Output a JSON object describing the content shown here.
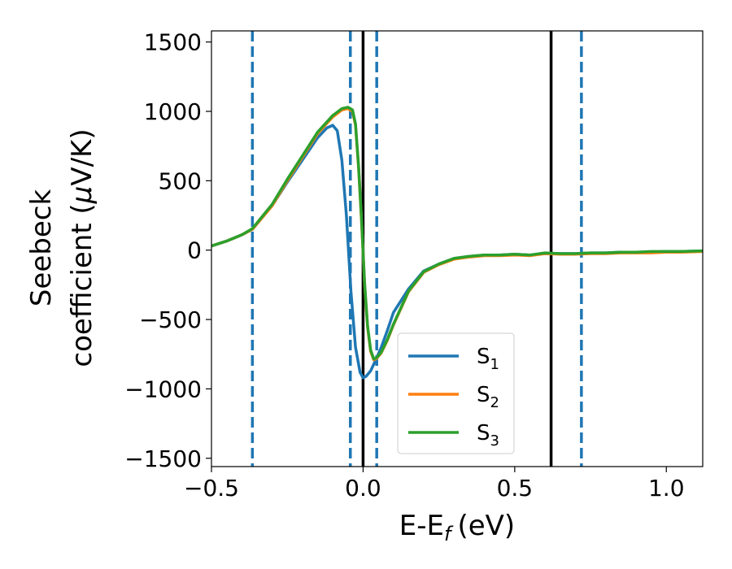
{
  "chart_data": {
    "type": "line",
    "xlabel": "E-E",
    "xlabel_sub": "f",
    "xlabel_unit": "(eV)",
    "ylabel_line1": "Seebeck",
    "ylabel_line2_main": "coefficient  (",
    "ylabel_line2_mu": "μ",
    "ylabel_line2_end": "V/K)",
    "xlim": [
      -0.5,
      1.12
    ],
    "ylim": [
      -1560,
      1580
    ],
    "xticks": [
      -0.5,
      0.0,
      0.5,
      1.0
    ],
    "xtick_labels": [
      "−0.5",
      "0.0",
      "0.5",
      "1.0"
    ],
    "yticks": [
      -1500,
      -1000,
      -500,
      0,
      500,
      1000,
      1500
    ],
    "ytick_labels": [
      "−1500",
      "−1000",
      "−500",
      "0",
      "500",
      "1000",
      "1500"
    ],
    "grid": false,
    "legend_placement": "lower-center",
    "vlines": [
      {
        "x": -0.365,
        "style": "dashed",
        "color": "#1f77b4"
      },
      {
        "x": -0.042,
        "style": "dashed",
        "color": "#1f77b4"
      },
      {
        "x": 0.045,
        "style": "dashed",
        "color": "#1f77b4"
      },
      {
        "x": 0.72,
        "style": "dashed",
        "color": "#1f77b4"
      },
      {
        "x": 0.0,
        "style": "solid",
        "color": "#000000"
      },
      {
        "x": 0.62,
        "style": "solid",
        "color": "#000000"
      }
    ],
    "series": [
      {
        "name": "S",
        "sub": "1",
        "color": "#1f77b4",
        "x": [
          -0.5,
          -0.45,
          -0.4,
          -0.365,
          -0.3,
          -0.25,
          -0.2,
          -0.15,
          -0.12,
          -0.1,
          -0.085,
          -0.07,
          -0.055,
          -0.04,
          -0.025,
          -0.01,
          0.0,
          0.01,
          0.025,
          0.04,
          0.06,
          0.08,
          0.1,
          0.15,
          0.2,
          0.25,
          0.3,
          0.35,
          0.4,
          0.45,
          0.5,
          0.55,
          0.6,
          0.65,
          0.7,
          0.75,
          0.8,
          0.85,
          0.9,
          0.95,
          1.0,
          1.05,
          1.12
        ],
        "y": [
          30,
          65,
          110,
          150,
          320,
          490,
          650,
          810,
          880,
          900,
          860,
          650,
          250,
          -300,
          -700,
          -880,
          -920,
          -910,
          -870,
          -800,
          -700,
          -580,
          -450,
          -280,
          -150,
          -100,
          -60,
          -45,
          -35,
          -35,
          -30,
          -35,
          -25,
          -25,
          -25,
          -20,
          -20,
          -15,
          -15,
          -15,
          -10,
          -10,
          -5
        ]
      },
      {
        "name": "S",
        "sub": "2",
        "color": "#ff7f0e",
        "x": [
          -0.5,
          -0.45,
          -0.4,
          -0.365,
          -0.3,
          -0.25,
          -0.2,
          -0.15,
          -0.1,
          -0.07,
          -0.05,
          -0.035,
          -0.025,
          -0.015,
          -0.005,
          0.005,
          0.015,
          0.025,
          0.035,
          0.045,
          0.06,
          0.08,
          0.1,
          0.15,
          0.2,
          0.25,
          0.3,
          0.35,
          0.4,
          0.45,
          0.5,
          0.55,
          0.6,
          0.65,
          0.7,
          0.75,
          0.8,
          0.85,
          0.9,
          0.95,
          1.0,
          1.05,
          1.12
        ],
        "y": [
          30,
          65,
          110,
          150,
          320,
          500,
          670,
          840,
          960,
          1010,
          1020,
          1000,
          900,
          600,
          200,
          -250,
          -560,
          -730,
          -790,
          -780,
          -740,
          -650,
          -540,
          -300,
          -160,
          -105,
          -65,
          -50,
          -40,
          -40,
          -35,
          -40,
          -25,
          -30,
          -30,
          -25,
          -25,
          -20,
          -20,
          -20,
          -15,
          -15,
          -10
        ]
      },
      {
        "name": "S",
        "sub": "3",
        "color": "#2ca02c",
        "x": [
          -0.5,
          -0.45,
          -0.4,
          -0.365,
          -0.3,
          -0.25,
          -0.2,
          -0.15,
          -0.1,
          -0.07,
          -0.05,
          -0.035,
          -0.025,
          -0.015,
          -0.005,
          0.005,
          0.015,
          0.025,
          0.035,
          0.045,
          0.06,
          0.08,
          0.1,
          0.15,
          0.2,
          0.25,
          0.3,
          0.35,
          0.4,
          0.45,
          0.5,
          0.55,
          0.6,
          0.65,
          0.7,
          0.75,
          0.8,
          0.85,
          0.9,
          0.95,
          1.0,
          1.05,
          1.12
        ],
        "y": [
          30,
          65,
          110,
          155,
          330,
          510,
          680,
          850,
          970,
          1020,
          1030,
          1010,
          910,
          610,
          210,
          -240,
          -550,
          -720,
          -785,
          -775,
          -735,
          -645,
          -535,
          -295,
          -155,
          -100,
          -60,
          -45,
          -35,
          -35,
          -30,
          -35,
          -20,
          -25,
          -25,
          -20,
          -20,
          -15,
          -15,
          -10,
          -10,
          -10,
          -5
        ]
      }
    ]
  }
}
